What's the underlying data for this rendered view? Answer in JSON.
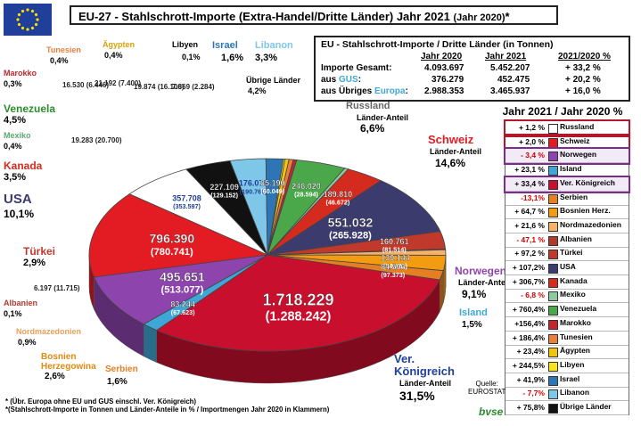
{
  "header": {
    "title": "EU-27 - Stahlschrott-Importe  (Extra-Handel/Dritte  Länder)  Jahr 2021",
    "title_suffix": "(Jahr 2020)",
    "asterisk": "*"
  },
  "colors": {
    "eu_blue": "#1f3f9a",
    "eu_star": "#ffdd00",
    "gus": "#3fa7d6",
    "europa": "#3fa7d6"
  },
  "stats_table": {
    "title": "EU - Stahlschrott-Importe / Dritte Länder (in Tonnen)",
    "headers": [
      "Jahr 2020",
      "Jahr 2021",
      "2021/2020 %"
    ],
    "rows": [
      {
        "label": "Importe Gesamt:",
        "label_colored": "",
        "v2020": "4.093.697",
        "v2021": "5.452.207",
        "change": "+ 33,2 %"
      },
      {
        "label": "aus ",
        "label_colored": "GUS",
        "label_tail": ":",
        "v2020": "376.279",
        "v2021": "452.475",
        "change": "+ 20,2 %"
      },
      {
        "label": "aus Übriges ",
        "label_colored": "Europa",
        "label_tail": ":",
        "v2020": "2.988.353",
        "v2021": "3.465.937",
        "change": "+ 16,0 %"
      }
    ]
  },
  "legend": {
    "title": "Jahr 2021 / Jahr 2020  %",
    "items": [
      {
        "change": "+ 1,2 %",
        "name": "Russland",
        "color": "#ffffff",
        "change_color": "#000000",
        "highlight": "red"
      },
      {
        "change": "+ 2,0 %",
        "name": "Schweiz",
        "color": "#e31b23",
        "change_color": "#000000",
        "highlight": "red"
      },
      {
        "change": "- 3,4 %",
        "name": "Norwegen",
        "color": "#8e44ad",
        "change_color": "#cc0000",
        "highlight": "purple"
      },
      {
        "change": "+ 23,1 %",
        "name": "Island",
        "color": "#3fa7d6",
        "change_color": "#000000",
        "highlight": ""
      },
      {
        "change": "+ 33,4 %",
        "name": "Ver. Königreich",
        "color": "#c8102e",
        "change_color": "#000000",
        "highlight": "purple"
      },
      {
        "change": "-13,1%",
        "name": "Serbien",
        "color": "#e67e22",
        "change_color": "#cc0000",
        "highlight": ""
      },
      {
        "change": "+ 64,7 %",
        "name": "Bosnien Herz.",
        "color": "#f39c12",
        "change_color": "#000000",
        "highlight": ""
      },
      {
        "change": "+ 21,6 %",
        "name": "Nordmazedonien",
        "color": "#f6b26b",
        "change_color": "#000000",
        "highlight": ""
      },
      {
        "change": "- 47,1 %",
        "name": "Albanien",
        "color": "#b03a2e",
        "change_color": "#cc0000",
        "highlight": ""
      },
      {
        "change": "+ 97,2 %",
        "name": "Türkei",
        "color": "#c0392b",
        "change_color": "#000000",
        "highlight": ""
      },
      {
        "change": "+ 107,2%",
        "name": "USA",
        "color": "#3c3b6e",
        "change_color": "#000000",
        "highlight": ""
      },
      {
        "change": "+ 306,7%",
        "name": "Kanada",
        "color": "#d52b1e",
        "change_color": "#000000",
        "highlight": ""
      },
      {
        "change": "- 6,8 %",
        "name": "Mexiko",
        "color": "#90c8a0",
        "change_color": "#cc0000",
        "highlight": ""
      },
      {
        "change": "+ 760,4%",
        "name": "Venezuela",
        "color": "#4aa84a",
        "change_color": "#000000",
        "highlight": ""
      },
      {
        "change": "+156,4%",
        "name": "Marokko",
        "color": "#c1272d",
        "change_color": "#000000",
        "highlight": ""
      },
      {
        "change": "+ 186,4%",
        "name": "Tunesien",
        "color": "#e8803c",
        "change_color": "#000000",
        "highlight": ""
      },
      {
        "change": "+ 23,4%",
        "name": "Ägypten",
        "color": "#f1c40f",
        "change_color": "#000000",
        "highlight": ""
      },
      {
        "change": "+ 244,5%",
        "name": "Libyen",
        "color": "#f7e51c",
        "change_color": "#000000",
        "highlight": ""
      },
      {
        "change": "+ 41,9%",
        "name": "Israel",
        "color": "#2e75b6",
        "change_color": "#000000",
        "highlight": ""
      },
      {
        "change": "- 7,7%",
        "name": "Libanon",
        "color": "#7fc7e8",
        "change_color": "#cc0000",
        "highlight": ""
      },
      {
        "change": "+ 75,8%",
        "name": "Übrige Länder",
        "color": "#111111",
        "change_color": "#000000",
        "highlight": ""
      }
    ]
  },
  "chart_data": {
    "type": "pie",
    "title": "EU-27 - Stahlschrott-Importe  (Extra-Handel/Dritte  Länder)  Jahr 2021 (Jahr 2020)",
    "unit": "Tonnen",
    "legend_placement": "right",
    "slices": [
      {
        "name": "Ver. Königreich",
        "label": "Ver. Königreich",
        "value_2021": 1718229,
        "value_2020": 1288242,
        "value_2021_text": "1.718.229",
        "value_2020_text": "(1.288.242)",
        "share": "31,5%",
        "color": "#c8102e"
      },
      {
        "name": "Island",
        "label": "Island",
        "value_2021": 83244,
        "value_2020": 67623,
        "value_2021_text": "83.244",
        "value_2020_text": "(67.623)",
        "share": "1,5%",
        "color": "#3fa7d6"
      },
      {
        "name": "Norwegen",
        "label": "Norwegen",
        "value_2021": 495651,
        "value_2020": 513077,
        "value_2021_text": "495.651",
        "value_2020_text": "(513.077)",
        "share": "9,1%",
        "color": "#8e44ad"
      },
      {
        "name": "Schweiz",
        "label": "Schweiz",
        "value_2021": 796390,
        "value_2020": 780741,
        "value_2021_text": "796.390",
        "value_2020_text": "(780.741)",
        "share": "14,6%",
        "color": "#e31b23"
      },
      {
        "name": "Russland",
        "label": "Russland",
        "value_2021": 357708,
        "value_2020": 353597,
        "value_2021_text": "357.708",
        "value_2020_text": "(353.597)",
        "share": "6,6%",
        "color": "#ffffff"
      },
      {
        "name": "Übrige Länder",
        "label": "Übrige Länder",
        "value_2021": 227109,
        "value_2020": 129152,
        "value_2021_text": "227.109",
        "value_2020_text": "(129.152)",
        "share": "4,2%",
        "color": "#111111"
      },
      {
        "name": "Libanon",
        "label": "Libanon",
        "value_2021": 176076,
        "value_2020": 190760,
        "value_2021_text": "176.076",
        "value_2020_text": "(190.760)",
        "share": "3,3%",
        "color": "#7fc7e8"
      },
      {
        "name": "Israel",
        "label": "Israel",
        "value_2021": 85190,
        "value_2020": 60049,
        "value_2021_text": "85.190",
        "value_2020_text": "(60.049)",
        "share": "1,6%",
        "color": "#2e75b6"
      },
      {
        "name": "Libyen",
        "label": "Libyen",
        "value_2021": 7869,
        "value_2020": 2284,
        "value_2021_text": "7.869",
        "value_2020_text": "(2.284)",
        "share": "0,1%",
        "color": "#f7e51c"
      },
      {
        "name": "Ägypten",
        "label": "Ägypten",
        "value_2021": 19874,
        "value_2020": 16106,
        "value_2021_text": "19.874",
        "value_2020_text": "(16.106)",
        "share": "0,4%",
        "color": "#f1c40f"
      },
      {
        "name": "Tunesien",
        "label": "Tunesien",
        "value_2021": 21192,
        "value_2020": 7400,
        "value_2021_text": "21.192",
        "value_2020_text": "(7.400)",
        "share": "0,4%",
        "color": "#e8803c"
      },
      {
        "name": "Marokko",
        "label": "Marokko",
        "value_2021": 16530,
        "value_2020": 6446,
        "value_2021_text": "16.530",
        "value_2020_text": "(6.446)",
        "share": "0,3%",
        "color": "#c1272d"
      },
      {
        "name": "Venezuela",
        "label": "Venezuela",
        "value_2021": 246020,
        "value_2020": 28594,
        "value_2021_text": "246.020",
        "value_2020_text": "(28.594)",
        "share": "4,5%",
        "color": "#4aa84a"
      },
      {
        "name": "Mexiko",
        "label": "Mexiko",
        "value_2021": 19283,
        "value_2020": 20700,
        "value_2021_text": "19.283",
        "value_2020_text": "(20.700)",
        "share": "0,4%",
        "color": "#90c8a0"
      },
      {
        "name": "Kanada",
        "label": "Kanada",
        "value_2021": 189810,
        "value_2020": 46672,
        "value_2021_text": "189.810",
        "value_2020_text": "(46.672)",
        "share": "3,5%",
        "color": "#d52b1e"
      },
      {
        "name": "USA",
        "label": "USA",
        "value_2021": 551032,
        "value_2020": 265928,
        "value_2021_text": "551.032",
        "value_2020_text": "(265.928)",
        "share": "10,1%",
        "color": "#3c3b6e"
      },
      {
        "name": "Türkei",
        "label": "Türkei",
        "value_2021": 160761,
        "value_2020": 81514,
        "value_2021_text": "160.761",
        "value_2020_text": "(81.514)",
        "share": "2,9%",
        "color": "#c0392b"
      },
      {
        "name": "Albanien",
        "label": "Albanien",
        "value_2021": 6197,
        "value_2020": 11715,
        "value_2021_text": "6.197",
        "value_2020_text": "(11.715)",
        "share": "0,1%",
        "color": "#b03a2e"
      },
      {
        "name": "Nordmazedonien",
        "label": "Nordmazedonien",
        "value_2021": 50302,
        "value_2020": 41370,
        "value_2021_text": "50.302",
        "value_2020_text": "(41.370)",
        "share": "0,9%",
        "color": "#f6b26b"
      },
      {
        "name": "Bosnien Herz.",
        "label": "Bosnien Herzegowina",
        "value_2021": 139144,
        "value_2020": 84482,
        "value_2021_text": "139.144",
        "value_2020_text": "(84.482)",
        "share": "2,6%",
        "color": "#f39c12"
      },
      {
        "name": "Serbien",
        "label": "Serbien",
        "value_2021": 84596,
        "value_2020": 97373,
        "value_2021_text": "84.596",
        "value_2020_text": "(97.373)",
        "share": "1,6%",
        "color": "#e67e22"
      }
    ],
    "extra_labels": {
      "russland_sub": "Länder-Anteil",
      "schweiz_sub": "Länder-Anteil",
      "norwegen_sub": "Länder-Anteil",
      "uk_sub": "Länder-Anteil",
      "uebrige_line1": "Übrige Länder",
      "uk_line1": "Ver.",
      "uk_line2": "Königreich",
      "bosnien_line1": "Bosnien",
      "bosnien_line2": "Herzegowina"
    }
  },
  "footnote": {
    "line1": "* (Übr. Europa ohne EU und GUS einschl. Ver. Königreich)",
    "line2": "*(Stahlschrott-Importe in Tonnen und Länder-Anteile in % / Importmengen Jahr 2020 in Klammern)"
  },
  "source": {
    "label": "Quelle:",
    "name": "EUROSTAT",
    "logo": "bvse"
  }
}
